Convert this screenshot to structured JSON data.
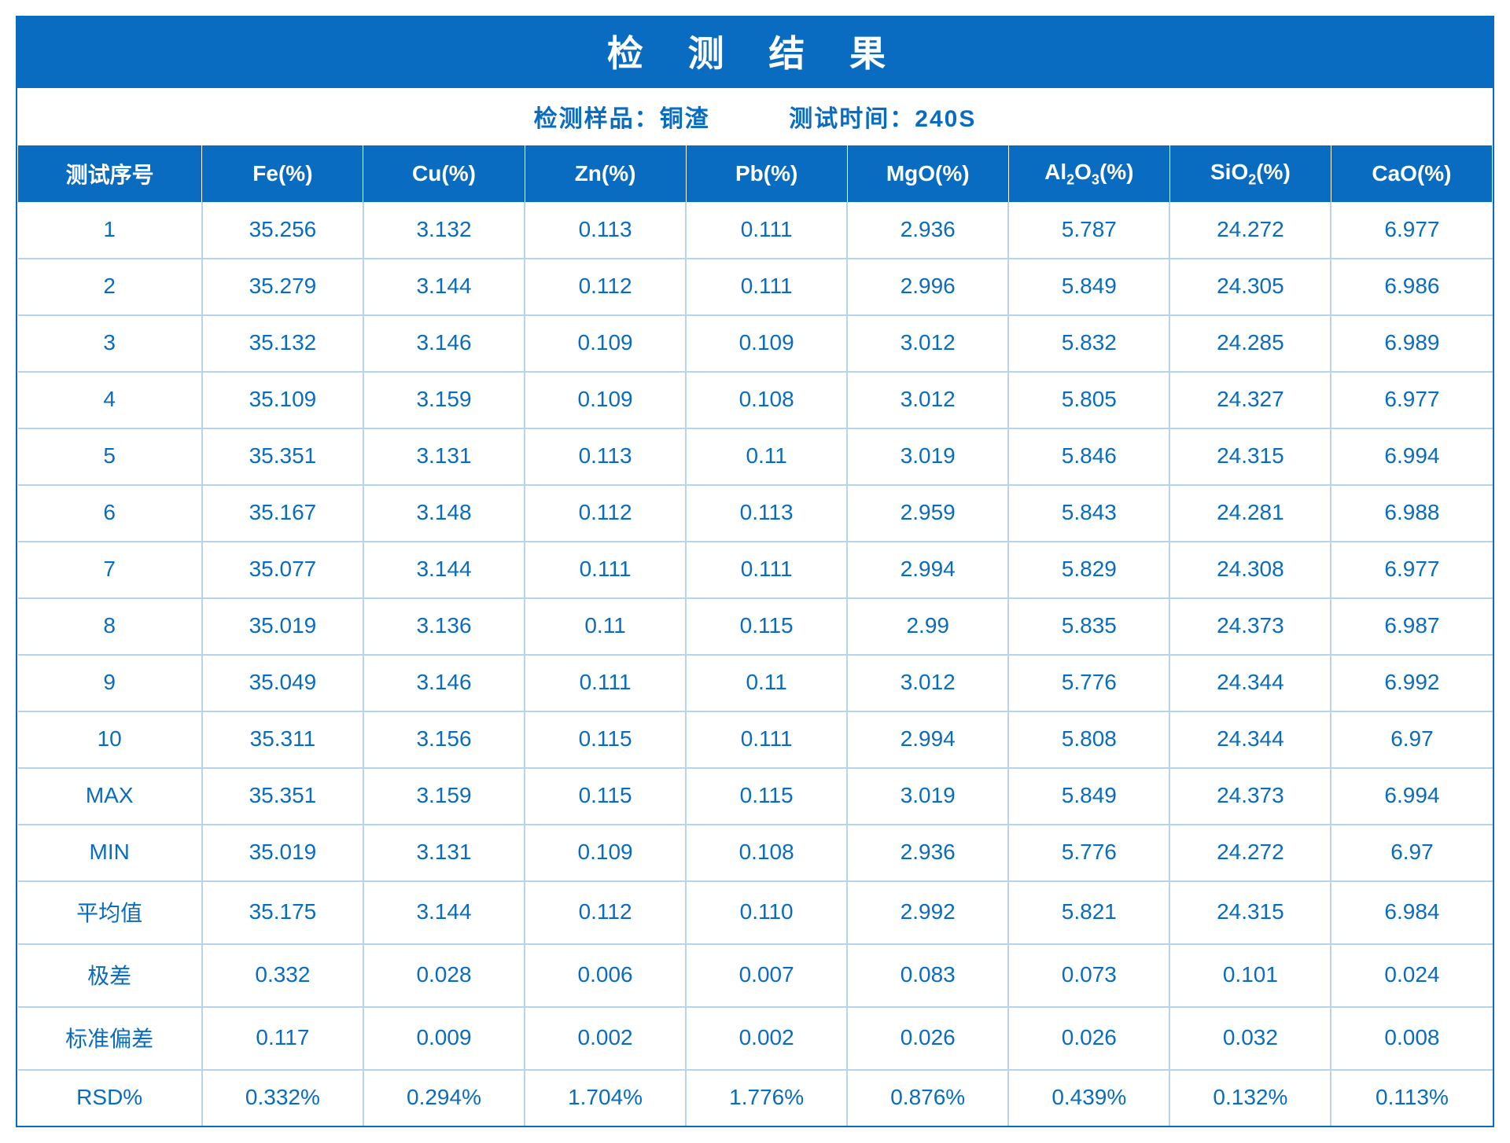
{
  "colors": {
    "primary": "#0a6cc0",
    "grid": "#b8d4ec",
    "bg": "#ffffff"
  },
  "title": "检 测 结 果",
  "subtitle": {
    "sample_label": "检测样品：",
    "sample_value": "铜渣",
    "time_label": "测试时间：",
    "time_value": "240S"
  },
  "columns": [
    {
      "key": "idx",
      "label": "测试序号",
      "width_pct": 12.5
    },
    {
      "key": "fe",
      "label": "Fe(%)",
      "width_pct": 10.9375
    },
    {
      "key": "cu",
      "label": "Cu(%)",
      "width_pct": 10.9375
    },
    {
      "key": "zn",
      "label": "Zn(%)",
      "width_pct": 10.9375
    },
    {
      "key": "pb",
      "label": "Pb(%)",
      "width_pct": 10.9375
    },
    {
      "key": "mgo",
      "label": "MgO(%)",
      "width_pct": 10.9375
    },
    {
      "key": "al2o3",
      "label": "Al₂O₃(%)",
      "width_pct": 10.9375
    },
    {
      "key": "sio2",
      "label": "SiO₂(%)",
      "width_pct": 10.9375
    },
    {
      "key": "cao",
      "label": "CaO(%)",
      "width_pct": 10.9375
    }
  ],
  "rows": [
    [
      "1",
      "35.256",
      "3.132",
      "0.113",
      "0.111",
      "2.936",
      "5.787",
      "24.272",
      "6.977"
    ],
    [
      "2",
      "35.279",
      "3.144",
      "0.112",
      "0.111",
      "2.996",
      "5.849",
      "24.305",
      "6.986"
    ],
    [
      "3",
      "35.132",
      "3.146",
      "0.109",
      "0.109",
      "3.012",
      "5.832",
      "24.285",
      "6.989"
    ],
    [
      "4",
      "35.109",
      "3.159",
      "0.109",
      "0.108",
      "3.012",
      "5.805",
      "24.327",
      "6.977"
    ],
    [
      "5",
      "35.351",
      "3.131",
      "0.113",
      "0.11",
      "3.019",
      "5.846",
      "24.315",
      "6.994"
    ],
    [
      "6",
      "35.167",
      "3.148",
      "0.112",
      "0.113",
      "2.959",
      "5.843",
      "24.281",
      "6.988"
    ],
    [
      "7",
      "35.077",
      "3.144",
      "0.111",
      "0.111",
      "2.994",
      "5.829",
      "24.308",
      "6.977"
    ],
    [
      "8",
      "35.019",
      "3.136",
      "0.11",
      "0.115",
      "2.99",
      "5.835",
      "24.373",
      "6.987"
    ],
    [
      "9",
      "35.049",
      "3.146",
      "0.111",
      "0.11",
      "3.012",
      "5.776",
      "24.344",
      "6.992"
    ],
    [
      "10",
      "35.311",
      "3.156",
      "0.115",
      "0.111",
      "2.994",
      "5.808",
      "24.344",
      "6.97"
    ],
    [
      "MAX",
      "35.351",
      "3.159",
      "0.115",
      "0.115",
      "3.019",
      "5.849",
      "24.373",
      "6.994"
    ],
    [
      "MIN",
      "35.019",
      "3.131",
      "0.109",
      "0.108",
      "2.936",
      "5.776",
      "24.272",
      "6.97"
    ],
    [
      "平均值",
      "35.175",
      "3.144",
      "0.112",
      "0.110",
      "2.992",
      "5.821",
      "24.315",
      "6.984"
    ],
    [
      "极差",
      "0.332",
      "0.028",
      "0.006",
      "0.007",
      "0.083",
      "0.073",
      "0.101",
      "0.024"
    ],
    [
      "标准偏差",
      "0.117",
      "0.009",
      "0.002",
      "0.002",
      "0.026",
      "0.026",
      "0.032",
      "0.008"
    ],
    [
      "RSD%",
      "0.332%",
      "0.294%",
      "1.704%",
      "1.776%",
      "0.876%",
      "0.439%",
      "0.132%",
      "0.113%"
    ]
  ],
  "typography": {
    "title_fontsize": 46,
    "subtitle_fontsize": 30,
    "header_fontsize": 28,
    "cell_fontsize": 28,
    "font_family": "Microsoft YaHei"
  }
}
